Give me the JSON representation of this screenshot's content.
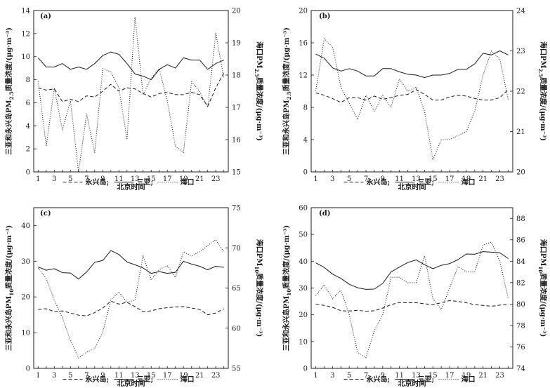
{
  "chart_data": [
    {
      "panel": "(a)",
      "type": "line",
      "xlabel": "北京时间",
      "ylabel_left": "三亚和永兴岛PM2.5质量浓度/(μg·m⁻³)",
      "ylabel_right": "海口PM2.5质量浓度/(μg·m⁻³)",
      "x": [
        1,
        2,
        3,
        4,
        5,
        6,
        7,
        8,
        9,
        10,
        11,
        12,
        13,
        14,
        15,
        16,
        17,
        18,
        19,
        20,
        21,
        22,
        23,
        24
      ],
      "x_ticks": [
        1,
        3,
        5,
        7,
        9,
        11,
        13,
        15,
        17,
        19,
        21,
        23
      ],
      "ylim_left": [
        0,
        14
      ],
      "yticks_left": [
        0,
        2,
        4,
        6,
        8,
        10,
        12,
        14
      ],
      "ylim_right": [
        15,
        20
      ],
      "yticks_right": [
        15,
        16,
        17,
        18,
        19,
        20
      ],
      "series": [
        {
          "name": "永兴岛",
          "axis": "left",
          "style": "dashed",
          "values": [
            7.3,
            7.1,
            7.2,
            6.1,
            6.3,
            6.1,
            6.6,
            6.5,
            7.0,
            7.6,
            7.0,
            7.3,
            7.2,
            6.8,
            6.5,
            6.8,
            6.9,
            6.7,
            6.7,
            6.9,
            6.7,
            5.7,
            7.3,
            8.6
          ]
        },
        {
          "name": "三亚",
          "axis": "left",
          "style": "solid",
          "values": [
            9.9,
            9.1,
            9.1,
            9.4,
            8.9,
            9.1,
            8.9,
            9.4,
            10.1,
            10.4,
            10.2,
            9.4,
            8.5,
            8.3,
            8.0,
            8.9,
            9.3,
            9.0,
            9.9,
            9.7,
            9.7,
            8.9,
            9.4,
            9.7
          ]
        },
        {
          "name": "海口",
          "axis": "right",
          "style": "dotted",
          "values": [
            17.8,
            15.8,
            17.6,
            16.3,
            17.2,
            15.0,
            16.8,
            15.6,
            18.2,
            18.1,
            17.6,
            16.0,
            19.8,
            17.4,
            17.9,
            18.2,
            17.2,
            15.8,
            15.6,
            17.8,
            17.5,
            17.0,
            19.3,
            17.9
          ]
        }
      ]
    },
    {
      "panel": "(b)",
      "type": "line",
      "xlabel": "北京时间",
      "ylabel_left": "三亚和永兴岛PM2.5质量浓度/(μg·m⁻³)",
      "ylabel_right": "海口PM2.5质量浓度/(μg·m⁻³)",
      "x": [
        1,
        2,
        3,
        4,
        5,
        6,
        7,
        8,
        9,
        10,
        11,
        12,
        13,
        14,
        15,
        16,
        17,
        18,
        19,
        20,
        21,
        22,
        23,
        24
      ],
      "x_ticks": [
        1,
        3,
        5,
        7,
        9,
        11,
        13,
        15,
        17,
        19,
        21,
        23
      ],
      "ylim_left": [
        0,
        20
      ],
      "yticks_left": [
        0,
        4,
        8,
        12,
        16,
        20
      ],
      "ylim_right": [
        20,
        24
      ],
      "yticks_right": [
        20,
        21,
        22,
        23,
        24
      ],
      "series": [
        {
          "name": "永兴岛",
          "axis": "left",
          "style": "dashed",
          "values": [
            9.8,
            9.5,
            9.1,
            8.6,
            9.2,
            9.2,
            8.9,
            9.4,
            9.0,
            9.2,
            9.5,
            9.6,
            10.2,
            9.6,
            8.9,
            8.9,
            9.3,
            9.5,
            9.4,
            9.1,
            8.9,
            8.9,
            9.2,
            10.2
          ]
        },
        {
          "name": "三亚",
          "axis": "left",
          "style": "solid",
          "values": [
            14.6,
            14.1,
            12.9,
            12.5,
            12.8,
            12.5,
            11.9,
            11.9,
            12.8,
            12.8,
            12.4,
            12.1,
            12.0,
            11.7,
            12.0,
            12.0,
            12.2,
            12.7,
            12.7,
            13.4,
            14.7,
            14.5,
            15.0,
            14.5
          ]
        },
        {
          "name": "海口",
          "axis": "right",
          "style": "dotted",
          "values": [
            22.0,
            23.3,
            23.1,
            22.1,
            21.7,
            21.3,
            21.9,
            21.5,
            21.9,
            21.6,
            22.3,
            22.0,
            22.1,
            21.5,
            20.3,
            20.8,
            20.8,
            20.9,
            21.0,
            21.5,
            22.4,
            23.0,
            22.8,
            21.8
          ]
        }
      ]
    },
    {
      "panel": "(c)",
      "type": "line",
      "xlabel": "北京时间",
      "ylabel_left": "三亚和永兴岛PM10质量浓度/(μg·m⁻³)",
      "ylabel_right": "海口PM10质量浓度/(μg·m⁻³)",
      "x": [
        1,
        2,
        3,
        4,
        5,
        6,
        7,
        8,
        9,
        10,
        11,
        12,
        13,
        14,
        15,
        16,
        17,
        18,
        19,
        20,
        21,
        22,
        23,
        24
      ],
      "x_ticks": [
        1,
        3,
        5,
        7,
        9,
        11,
        13,
        15,
        17,
        19,
        21,
        23
      ],
      "ylim_left": [
        0,
        45
      ],
      "yticks_left": [
        0,
        10,
        20,
        30,
        40
      ],
      "ylim_right": [
        55,
        75
      ],
      "yticks_right": [
        55,
        60,
        65,
        70,
        75
      ],
      "series": [
        {
          "name": "永兴岛",
          "axis": "left",
          "style": "dashed",
          "values": [
            16.5,
            16.7,
            15.9,
            16.1,
            15.5,
            14.9,
            14.7,
            15.6,
            16.9,
            18.8,
            18.0,
            18.5,
            17.3,
            15.9,
            16.1,
            16.7,
            17.0,
            17.2,
            17.3,
            16.9,
            16.5,
            15.0,
            15.5,
            16.7
          ]
        },
        {
          "name": "三亚",
          "axis": "left",
          "style": "solid",
          "values": [
            28.4,
            27.5,
            27.9,
            26.8,
            26.7,
            25.0,
            27.0,
            29.7,
            30.2,
            33.0,
            31.9,
            29.8,
            29.0,
            28.1,
            26.6,
            27.1,
            26.6,
            26.9,
            30.0,
            29.2,
            28.6,
            27.6,
            28.6,
            28.3
          ]
        },
        {
          "name": "海口",
          "axis": "right",
          "style": "dotted",
          "values": [
            67.5,
            66.2,
            63.5,
            61.3,
            58.5,
            56.3,
            57.0,
            57.5,
            59.5,
            63.5,
            64.5,
            63.2,
            63.5,
            69.0,
            66.0,
            67.3,
            67.8,
            66.3,
            69.5,
            69.0,
            69.5,
            70.3,
            71.0,
            69.5
          ]
        }
      ]
    },
    {
      "panel": "(d)",
      "type": "line",
      "xlabel": "北京时间",
      "ylabel_left": "三亚和永兴岛PM10质量浓度/(μg·m⁻³)",
      "ylabel_right": "海口PM10质量浓度/(μg·m⁻³)",
      "x": [
        1,
        2,
        3,
        4,
        5,
        6,
        7,
        8,
        9,
        10,
        11,
        12,
        13,
        14,
        15,
        16,
        17,
        18,
        19,
        20,
        21,
        22,
        23,
        24
      ],
      "x_ticks": [
        1,
        3,
        5,
        7,
        9,
        11,
        13,
        15,
        17,
        19,
        21,
        23
      ],
      "ylim_left": [
        0,
        60
      ],
      "yticks_left": [
        0,
        10,
        20,
        30,
        40,
        50,
        60
      ],
      "ylim_right": [
        74,
        89
      ],
      "yticks_right": [
        74,
        76,
        78,
        80,
        82,
        84,
        86,
        88
      ],
      "series": [
        {
          "name": "永兴岛",
          "axis": "left",
          "style": "dashed",
          "values": [
            24.0,
            23.5,
            22.8,
            21.5,
            21.4,
            21.7,
            21.3,
            21.5,
            22.5,
            23.8,
            24.6,
            24.5,
            24.5,
            24.1,
            23.8,
            24.5,
            25.3,
            25.0,
            24.5,
            23.8,
            23.5,
            23.2,
            23.6,
            23.9
          ]
        },
        {
          "name": "三亚",
          "axis": "left",
          "style": "solid",
          "values": [
            39.4,
            37.7,
            35.2,
            33.6,
            31.4,
            30.1,
            29.5,
            29.6,
            31.7,
            36.0,
            37.8,
            39.5,
            40.5,
            38.7,
            37.2,
            38.5,
            39.1,
            40.6,
            42.7,
            42.6,
            43.6,
            43.4,
            43.2,
            41.0
          ]
        },
        {
          "name": "海口",
          "axis": "right",
          "style": "dotted",
          "values": [
            80.8,
            81.8,
            80.5,
            81.3,
            79.0,
            75.5,
            75.0,
            77.5,
            79.0,
            82.5,
            82.5,
            82.0,
            82.0,
            84.5,
            80.5,
            79.5,
            81.5,
            83.5,
            83.0,
            83.0,
            85.5,
            85.8,
            84.0,
            80.5
          ]
        }
      ]
    }
  ],
  "legend": {
    "yongxing_label": "永兴岛;",
    "sanya_label": "三亚;",
    "haikou_label": "海口"
  }
}
